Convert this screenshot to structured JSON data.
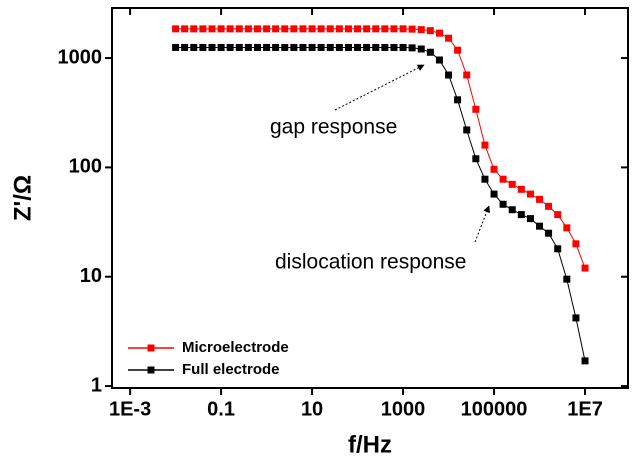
{
  "chart_data": {
    "type": "line",
    "xlabel": "f/Hz",
    "ylabel": "Z'/Ω",
    "log_x": true,
    "log_y": true,
    "xlim": [
      0.0004,
      88000000
    ],
    "ylim": [
      0.96,
      2870
    ],
    "xticks": [
      {
        "value": 0.001,
        "label": "1E-3"
      },
      0.1,
      10,
      1000,
      100000,
      {
        "value": 10000000,
        "label": "1E7"
      }
    ],
    "yticks": [
      1,
      10,
      100,
      1000
    ],
    "legend": "lower left",
    "annotations": [
      "gap response",
      "dislocation response"
    ],
    "x": [
      0.01,
      0.0158,
      0.0251,
      0.0398,
      0.0631,
      0.1,
      0.158,
      0.251,
      0.398,
      0.631,
      1,
      1.58,
      2.51,
      3.98,
      6.31,
      10,
      15.8,
      25.1,
      39.8,
      63.1,
      100,
      158,
      251,
      398,
      631,
      1000,
      1580,
      2510,
      3980,
      6310,
      10000,
      15800,
      25100,
      39800,
      63100,
      100000,
      158000,
      251000,
      398000,
      631000,
      1000000,
      1580000,
      2510000,
      3980000,
      6310000,
      10000000
    ],
    "series": [
      {
        "name": "Microelectrode",
        "color": "#ff0000",
        "values": [
          1850,
          1850,
          1850,
          1850,
          1850,
          1850,
          1850,
          1850,
          1850,
          1850,
          1850,
          1850,
          1850,
          1850,
          1850,
          1850,
          1850,
          1850,
          1850,
          1850,
          1850,
          1850,
          1850,
          1850,
          1850,
          1850,
          1840,
          1820,
          1780,
          1690,
          1520,
          1180,
          700,
          340,
          160,
          96,
          78,
          70,
          63,
          57,
          51,
          44,
          37,
          28,
          20,
          12
        ]
      },
      {
        "name": "Full electrode",
        "color": "#000000",
        "values": [
          1250,
          1250,
          1250,
          1250,
          1250,
          1250,
          1250,
          1250,
          1250,
          1250,
          1250,
          1250,
          1250,
          1250,
          1250,
          1250,
          1250,
          1250,
          1250,
          1250,
          1250,
          1250,
          1250,
          1250,
          1250,
          1250,
          1240,
          1210,
          1130,
          960,
          700,
          415,
          220,
          120,
          78,
          57,
          46,
          41,
          37,
          34,
          29,
          25,
          18,
          9.5,
          4.2,
          1.7
        ]
      }
    ]
  }
}
